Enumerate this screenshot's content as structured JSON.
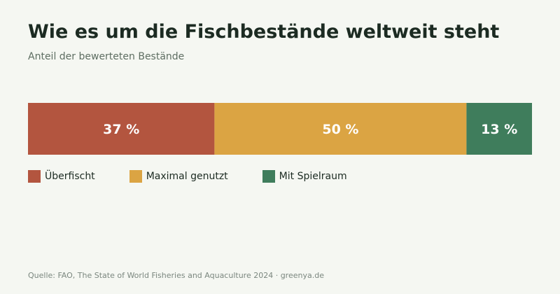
{
  "title": "Wie es um die Fischbestände weltweit steht",
  "subtitle": "Anteil der bewerteten Bestände",
  "source": "Quelle: FAO, The State of World Fisheries and Aquaculture 2024 · greenya.de",
  "chart_data": {
    "type": "bar",
    "orientation": "horizontal-stacked-100",
    "unit": "%",
    "categories": [
      "Überfischt",
      "Maximal genutzt",
      "Mit Spielraum"
    ],
    "values": [
      37,
      50,
      13
    ],
    "labels": [
      "37 %",
      "50 %",
      "13 %"
    ],
    "colors": [
      "#b3553f",
      "#dba443",
      "#3f7d5c"
    ],
    "legend": "below"
  }
}
